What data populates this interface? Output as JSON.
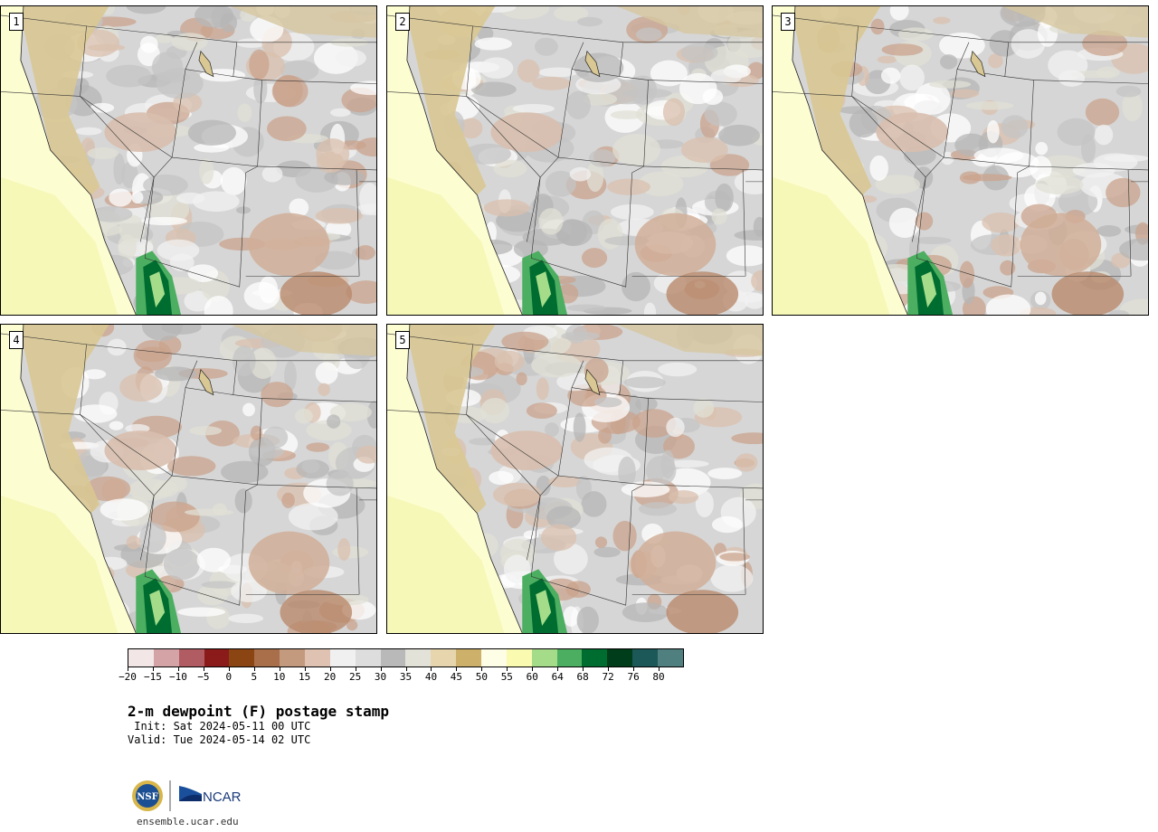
{
  "title": "2-m dewpoint (F) postage stamp",
  "init": " Init: Sat 2024-05-11 00 UTC",
  "valid": "Valid: Tue 2024-05-14 02 UTC",
  "url": "ensemble.ucar.edu",
  "logos": {
    "nsf": "NSF",
    "ncar": "NCAR"
  },
  "members": [
    "1",
    "2",
    "3",
    "4",
    "5"
  ],
  "colorbar": {
    "colors": [
      "#f3e6e6",
      "#d4a3a6",
      "#b05c62",
      "#8b1a1a",
      "#8b4513",
      "#a86f4a",
      "#c49a7e",
      "#dfc2b2",
      "#f0f0f0",
      "#dddddd",
      "#b9b9b9",
      "#e2e2d8",
      "#e6d5ad",
      "#cdb16a",
      "#fefee6",
      "#fafab0",
      "#a4dc8a",
      "#4cae60",
      "#006d30",
      "#003d1a",
      "#1c5858",
      "#4f7f7f"
    ],
    "ticks": [
      "-20",
      "-15",
      "-10",
      "-5",
      "0",
      "5",
      "10",
      "15",
      "20",
      "25",
      "30",
      "35",
      "40",
      "45",
      "50",
      "55",
      "60",
      "64",
      "68",
      "72",
      "76",
      "80"
    ]
  }
}
